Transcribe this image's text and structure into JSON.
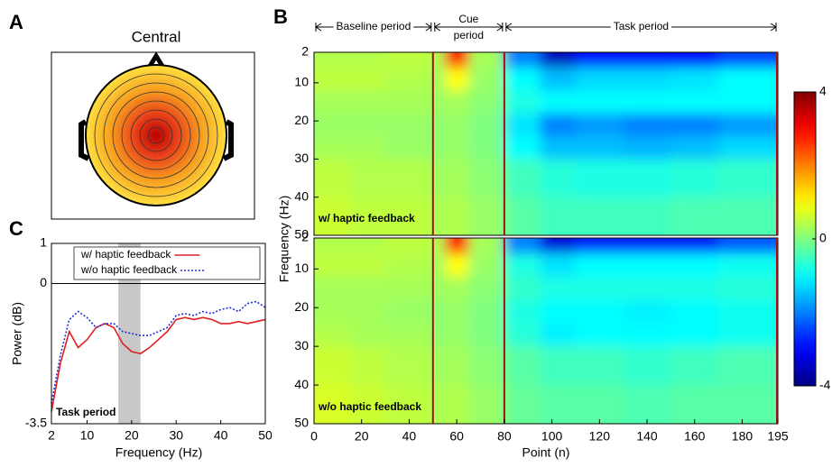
{
  "chart_data": [
    {
      "type": "topomap",
      "panel_label": "A",
      "title": "Central"
    },
    {
      "type": "heatmap",
      "panel_label": "B",
      "x_label": "Point (n)",
      "y_label": "Frequency (Hz)",
      "xlim": [
        0,
        195
      ],
      "xticks": [
        0,
        20,
        40,
        60,
        80,
        100,
        120,
        140,
        160,
        180,
        195
      ],
      "ylim": [
        2,
        50
      ],
      "yticks": [
        2,
        10,
        20,
        30,
        40,
        50
      ],
      "y_inverted": true,
      "clim": [
        -4,
        4
      ],
      "cticks": [
        4,
        0,
        -4
      ],
      "colormap": "jet",
      "periods": [
        {
          "label_lines": [
            "Baseline period"
          ],
          "start": 0,
          "end": 50
        },
        {
          "label_lines": [
            "Cue",
            "period"
          ],
          "start": 50,
          "end": 80
        },
        {
          "label_lines": [
            "Task period"
          ],
          "start": 80,
          "end": 195
        }
      ],
      "x_edges": [
        0,
        15,
        30,
        50,
        55,
        65,
        80,
        95,
        110,
        130,
        150,
        170,
        195
      ],
      "y_edges": [
        2,
        6,
        12,
        18,
        24,
        30,
        40,
        50
      ],
      "panels": [
        {
          "name": "w/ haptic feedback",
          "z": [
            [
              0.4,
              0.4,
              0.5,
              0.3,
              3,
              0.3,
              -2,
              -3.5,
              -3,
              -3,
              -3,
              -2.5
            ],
            [
              0.5,
              0.5,
              0.4,
              0.2,
              1,
              0.2,
              -1,
              -1.5,
              -1.3,
              -1.3,
              -1.2,
              -1
            ],
            [
              0.3,
              0.3,
              0.3,
              0.2,
              0.3,
              0.1,
              -0.8,
              -1,
              -1,
              -1,
              -1,
              -1
            ],
            [
              0.2,
              0.2,
              0.2,
              0.1,
              0.2,
              0,
              -1.2,
              -2,
              -1.8,
              -2,
              -2,
              -1.8
            ],
            [
              0.3,
              0.3,
              0.2,
              0.1,
              0.2,
              0,
              -1,
              -1.5,
              -1.5,
              -1.6,
              -1.5,
              -1.3
            ],
            [
              0.5,
              0.4,
              0.4,
              0.2,
              0.3,
              0.1,
              -0.5,
              -0.7,
              -0.8,
              -0.8,
              -0.7,
              -0.6
            ],
            [
              0.6,
              0.5,
              0.5,
              0.3,
              0.4,
              0.2,
              -0.3,
              -0.5,
              -0.5,
              -0.5,
              -0.4,
              -0.4
            ]
          ]
        },
        {
          "name": "w/o haptic feedback",
          "z": [
            [
              0.4,
              0.4,
              0.5,
              0.3,
              3,
              0.3,
              -2,
              -3.3,
              -2.8,
              -2.8,
              -2.8,
              -2.3
            ],
            [
              0.5,
              0.5,
              0.4,
              0.2,
              1,
              0.2,
              -0.8,
              -1.2,
              -1,
              -1,
              -1,
              -0.9
            ],
            [
              0.3,
              0.3,
              0.3,
              0.2,
              0.3,
              0.1,
              -0.6,
              -0.8,
              -0.8,
              -0.8,
              -0.8,
              -0.7
            ],
            [
              0.3,
              0.3,
              0.2,
              0.1,
              0.2,
              0,
              -0.8,
              -1,
              -1,
              -1.1,
              -1,
              -0.9
            ],
            [
              0.4,
              0.3,
              0.3,
              0.1,
              0.2,
              0,
              -0.7,
              -1.1,
              -1,
              -1,
              -1,
              -0.9
            ],
            [
              0.6,
              0.5,
              0.4,
              0.2,
              0.3,
              0.1,
              -0.3,
              -0.5,
              -0.5,
              -0.6,
              -0.5,
              -0.4
            ],
            [
              0.7,
              0.6,
              0.5,
              0.3,
              0.4,
              0.2,
              -0.2,
              -0.3,
              -0.3,
              -0.4,
              -0.3,
              -0.3
            ]
          ]
        }
      ]
    },
    {
      "type": "line",
      "panel_label": "C",
      "x_label": "Frequency (Hz)",
      "y_label": "Power (dB)",
      "annotation": "Task  period",
      "xlim": [
        2,
        50
      ],
      "xticks": [
        2,
        10,
        20,
        30,
        40,
        50
      ],
      "ylim": [
        -3.5,
        1
      ],
      "yticks": [
        -3.5,
        0,
        1
      ],
      "shade": [
        17,
        22
      ],
      "reference_line": 0,
      "legend": "top",
      "x": [
        2,
        4,
        6,
        8,
        10,
        12,
        14,
        16,
        18,
        20,
        22,
        24,
        26,
        28,
        30,
        32,
        34,
        36,
        38,
        40,
        42,
        44,
        46,
        48,
        50
      ],
      "series": [
        {
          "name": "w/ haptic feedback",
          "color": "#e02020",
          "dash": false,
          "values": [
            -3.2,
            -2.0,
            -1.2,
            -1.6,
            -1.4,
            -1.1,
            -1.0,
            -1.1,
            -1.5,
            -1.7,
            -1.75,
            -1.6,
            -1.4,
            -1.2,
            -0.9,
            -0.85,
            -0.9,
            -0.85,
            -0.9,
            -1.0,
            -1.0,
            -0.95,
            -1.0,
            -0.95,
            -0.9
          ]
        },
        {
          "name": "w/o haptic feedback",
          "color": "#2030d0",
          "dash": true,
          "values": [
            -3.0,
            -1.8,
            -0.9,
            -0.7,
            -0.85,
            -1.1,
            -1.0,
            -1.0,
            -1.2,
            -1.25,
            -1.3,
            -1.3,
            -1.2,
            -1.1,
            -0.8,
            -0.75,
            -0.8,
            -0.7,
            -0.75,
            -0.65,
            -0.6,
            -0.7,
            -0.5,
            -0.45,
            -0.6
          ]
        }
      ]
    }
  ]
}
